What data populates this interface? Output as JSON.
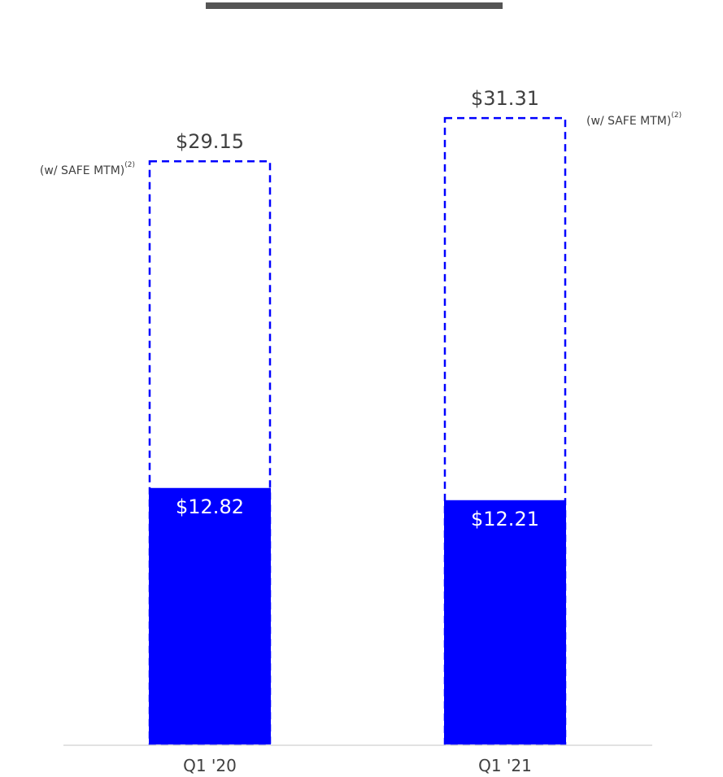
{
  "colors": {
    "bar_fill": "#0000ff",
    "dashed_outline": "#0000ff",
    "header_rule": "#555555",
    "axis_line": "#d9d9d9",
    "text": "#404040",
    "bar_label_text": "#ffffff"
  },
  "chart_data": {
    "type": "bar",
    "categories": [
      "Q1 '20",
      "Q1 '21"
    ],
    "series": [
      {
        "values": [
          12.82,
          12.21
        ],
        "labels": [
          "$12.82",
          "$12.21"
        ],
        "style": "solid"
      },
      {
        "values": [
          29.15,
          31.31
        ],
        "labels": [
          "$29.15",
          "$31.31"
        ],
        "style": "dashed-outline",
        "annotation": "(w/ SAFE MTM)",
        "annotation_footnote": "(2)"
      }
    ],
    "ylim": [
      0,
      35
    ],
    "grid": false,
    "legend": "none",
    "xlabel": "",
    "ylabel": ""
  }
}
